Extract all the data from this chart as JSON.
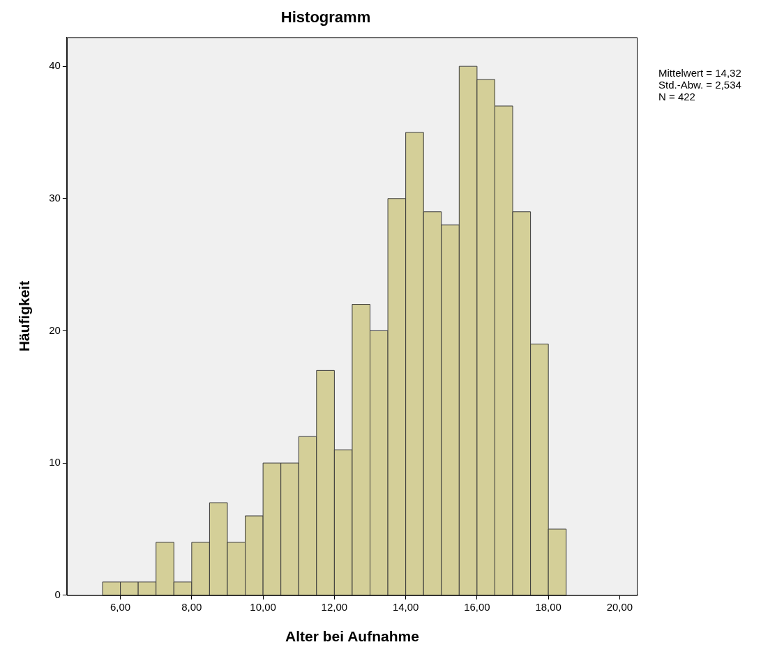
{
  "chart_data": {
    "type": "histogram",
    "title": "Histogramm",
    "xlabel": "Alter bei Aufnahme",
    "ylabel": "Häufigkeit",
    "bins": [
      5.5,
      6,
      6.5,
      7,
      7.5,
      8,
      8.5,
      9,
      9.5,
      10,
      10.5,
      11,
      11.5,
      12,
      12.5,
      13,
      13.5,
      14,
      14.5,
      15,
      15.5,
      16,
      16.5,
      17,
      17.5,
      18,
      18.5
    ],
    "values": [
      1,
      1,
      1,
      4,
      1,
      4,
      7,
      4,
      6,
      10,
      10,
      12,
      17,
      11,
      22,
      20,
      30,
      35,
      29,
      28,
      40,
      39,
      37,
      29,
      19,
      5
    ],
    "color": "#d4cf98",
    "xlim": [
      4.5,
      20.5
    ],
    "xticks": [
      {
        "value": 6,
        "label": "6,00"
      },
      {
        "value": 8,
        "label": "8,00"
      },
      {
        "value": 10,
        "label": "10,00"
      },
      {
        "value": 12,
        "label": "12,00"
      },
      {
        "value": 14,
        "label": "14,00"
      },
      {
        "value": 16,
        "label": "16,00"
      },
      {
        "value": 18,
        "label": "18,00"
      },
      {
        "value": 20,
        "label": "20,00"
      }
    ],
    "ylim": [
      0,
      42.2
    ],
    "yticks": [
      0,
      10,
      20,
      30,
      40
    ],
    "annotations": [
      "Mittelwert = 14,32",
      "Std.-Abw. = 2,534",
      "N = 422"
    ],
    "grid": false,
    "legend": false
  }
}
